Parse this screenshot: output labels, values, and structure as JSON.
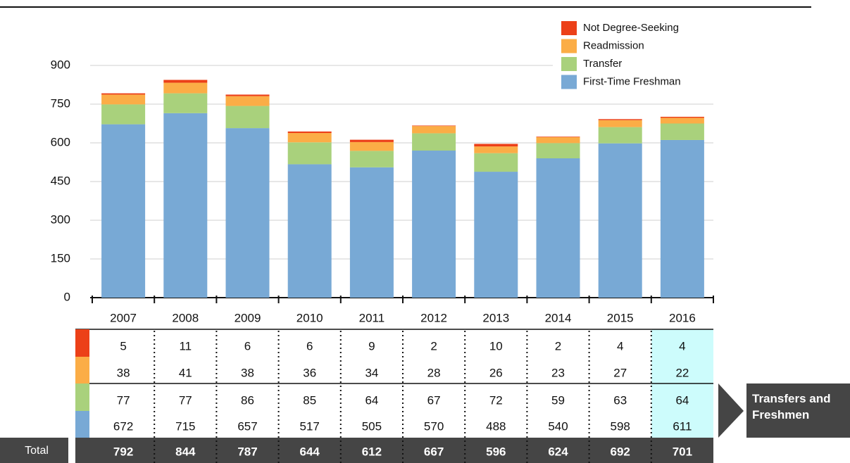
{
  "chart_data": {
    "type": "bar",
    "stacked": true,
    "categories": [
      "2007",
      "2008",
      "2009",
      "2010",
      "2011",
      "2012",
      "2013",
      "2014",
      "2015",
      "2016"
    ],
    "series": [
      {
        "name": "First-Time Freshman",
        "color": "#78a9d5",
        "values": [
          672,
          715,
          657,
          517,
          505,
          570,
          488,
          540,
          598,
          611
        ]
      },
      {
        "name": "Transfer",
        "color": "#a9d17c",
        "values": [
          77,
          77,
          86,
          85,
          64,
          67,
          72,
          59,
          63,
          64
        ]
      },
      {
        "name": "Readmission",
        "color": "#fbad46",
        "values": [
          38,
          41,
          38,
          36,
          34,
          28,
          26,
          23,
          27,
          22
        ]
      },
      {
        "name": "Not Degree-Seeking",
        "color": "#ec4018",
        "values": [
          5,
          11,
          6,
          6,
          9,
          2,
          10,
          2,
          4,
          4
        ]
      }
    ],
    "totals": [
      792,
      844,
      787,
      644,
      612,
      667,
      596,
      624,
      692,
      701
    ],
    "total_label": "Total",
    "callout": "Transfers and Freshmen",
    "ylim": [
      0,
      900
    ],
    "yticks": [
      0,
      150,
      300,
      450,
      600,
      750,
      900
    ],
    "grid": true,
    "legend": "top-right"
  }
}
